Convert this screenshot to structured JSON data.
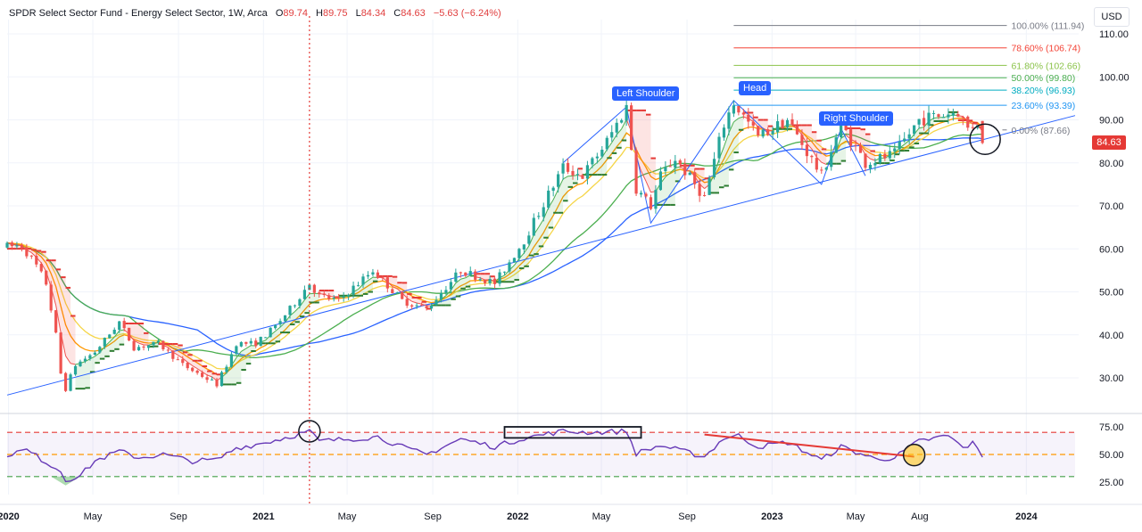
{
  "header": {
    "title": "SPDR Select Sector Fund - Energy Select Sector, 1W, Arca",
    "open_label": "O",
    "open_value": "89.74",
    "high_label": "H",
    "high_value": "89.75",
    "low_label": "L",
    "low_value": "84.34",
    "close_label": "C",
    "close_value": "84.63",
    "change": "−5.63 (−6.24%)"
  },
  "currency_button": "USD",
  "last_price_badge": "84.63",
  "colors": {
    "up": "#26a69a",
    "down": "#ef5350",
    "ma_blue": "#2962ff",
    "ma_green": "#4caf50",
    "ma_yellow": "#f5d547",
    "ma_orange": "#ff9800",
    "rsi_line": "#673ab7",
    "label_bg": "#2962ff"
  },
  "pattern_labels": [
    "Left Shoulder",
    "Head",
    "Right Shoulder"
  ],
  "chart_data": [
    {
      "type": "candlestick",
      "panel": "price",
      "yaxis_ticks": [
        "110.00",
        "100.00",
        "90.00",
        "80.00",
        "70.00",
        "60.00",
        "50.00",
        "40.00",
        "30.00"
      ],
      "ylim": [
        21,
        114
      ],
      "xaxis_ticks": [
        "2020",
        "May",
        "Sep",
        "2021",
        "May",
        "Sep",
        "2022",
        "May",
        "Sep",
        "2023",
        "May",
        "Aug",
        "2024"
      ],
      "price_anchors": [
        [
          "2019-12-30",
          60.5
        ],
        [
          "2020-01-20",
          60.8
        ],
        [
          "2020-02-10",
          56
        ],
        [
          "2020-02-24",
          52
        ],
        [
          "2020-03-09",
          40
        ],
        [
          "2020-03-16",
          31
        ],
        [
          "2020-03-23",
          27.5
        ],
        [
          "2020-04-06",
          33
        ],
        [
          "2020-05-04",
          36
        ],
        [
          "2020-06-08",
          43
        ],
        [
          "2020-06-29",
          37
        ],
        [
          "2020-08-03",
          38
        ],
        [
          "2020-09-07",
          33
        ],
        [
          "2020-10-26",
          28.5
        ],
        [
          "2020-11-09",
          33
        ],
        [
          "2020-11-23",
          38
        ],
        [
          "2020-12-21",
          38
        ],
        [
          "2021-01-18",
          42
        ],
        [
          "2021-02-08",
          46
        ],
        [
          "2021-03-08",
          52
        ],
        [
          "2021-03-22",
          49
        ],
        [
          "2021-04-19",
          48
        ],
        [
          "2021-06-07",
          55
        ],
        [
          "2021-07-19",
          48
        ],
        [
          "2021-08-23",
          46
        ],
        [
          "2021-10-11",
          55
        ],
        [
          "2021-11-29",
          52
        ],
        [
          "2022-01-10",
          62
        ],
        [
          "2022-03-07",
          79
        ],
        [
          "2022-04-04",
          77
        ],
        [
          "2022-05-09",
          85
        ],
        [
          "2022-06-06",
          93
        ],
        [
          "2022-06-20",
          74
        ],
        [
          "2022-07-11",
          70
        ],
        [
          "2022-07-25",
          77
        ],
        [
          "2022-08-15",
          81
        ],
        [
          "2022-09-26",
          72
        ],
        [
          "2022-10-24",
          89
        ],
        [
          "2022-11-07",
          94
        ],
        [
          "2022-12-12",
          86
        ],
        [
          "2023-01-23",
          90
        ],
        [
          "2023-03-13",
          77
        ],
        [
          "2023-04-10",
          89
        ],
        [
          "2023-05-15",
          80
        ],
        [
          "2023-06-26",
          82
        ],
        [
          "2023-07-31",
          90
        ],
        [
          "2023-09-25",
          92
        ],
        [
          "2023-10-09",
          88
        ],
        [
          "2023-10-23",
          89.74
        ],
        [
          "2023-10-30",
          84.63
        ]
      ],
      "last_candle": {
        "open": 89.74,
        "high": 89.75,
        "low": 84.34,
        "close": 84.63
      },
      "overlays": [
        {
          "name": "long-term-trendline",
          "color": "#2962ff",
          "from": [
            "2019-12-30",
            26
          ],
          "to": [
            "2024-03-11",
            91
          ]
        }
      ],
      "annotations": [
        {
          "text": "Left Shoulder",
          "date": "2022-06-06",
          "price": 93
        },
        {
          "text": "Head",
          "date": "2022-11-07",
          "price": 94.5
        },
        {
          "text": "Right Shoulder",
          "date": "2023-03-06",
          "price": 88
        }
      ],
      "fibonacci": {
        "start_date": "2022-11-07",
        "end_date": "2023-12-04",
        "levels": [
          {
            "label": "100.00% (111.94)",
            "price": 111.94,
            "color": "#787b86"
          },
          {
            "label": "78.60% (106.74)",
            "price": 106.74,
            "color": "#f44336"
          },
          {
            "label": "61.80% (102.66)",
            "price": 102.66,
            "color": "#8bc34a"
          },
          {
            "label": "50.00% (99.80)",
            "price": 99.8,
            "color": "#4caf50"
          },
          {
            "label": "38.20% (96.93)",
            "price": 96.93,
            "color": "#00acc1"
          },
          {
            "label": "23.60% (93.39)",
            "price": 93.39,
            "color": "#2196f3"
          },
          {
            "label": "0.00% (87.66)",
            "price": 87.66,
            "color": "#787b86"
          }
        ]
      }
    },
    {
      "type": "line",
      "panel": "rsi",
      "yaxis_ticks": [
        "75.00",
        "50.00",
        "25.00"
      ],
      "ylim": [
        20,
        79
      ],
      "upper_band": 70,
      "middle_band": 50,
      "lower_band": 30,
      "rsi_anchors": [
        [
          "2019-12-30",
          50
        ],
        [
          "2020-01-27",
          54
        ],
        [
          "2020-02-24",
          43
        ],
        [
          "2020-03-16",
          35
        ],
        [
          "2020-03-23",
          27
        ],
        [
          "2020-04-13",
          31
        ],
        [
          "2020-05-04",
          44
        ],
        [
          "2020-06-08",
          53
        ],
        [
          "2020-07-06",
          47
        ],
        [
          "2020-08-10",
          50
        ],
        [
          "2020-09-21",
          44
        ],
        [
          "2020-10-26",
          45
        ],
        [
          "2020-11-23",
          56
        ],
        [
          "2020-12-21",
          59
        ],
        [
          "2021-01-25",
          64
        ],
        [
          "2021-03-08",
          71
        ],
        [
          "2021-03-22",
          62
        ],
        [
          "2021-05-03",
          64
        ],
        [
          "2021-06-14",
          66
        ],
        [
          "2021-07-26",
          55
        ],
        [
          "2021-08-23",
          50
        ],
        [
          "2021-10-11",
          64
        ],
        [
          "2021-11-29",
          57
        ],
        [
          "2022-01-10",
          65
        ],
        [
          "2022-03-07",
          71
        ],
        [
          "2022-04-18",
          70
        ],
        [
          "2022-06-06",
          71
        ],
        [
          "2022-06-20",
          51
        ],
        [
          "2022-07-25",
          58
        ],
        [
          "2022-09-26",
          48
        ],
        [
          "2022-10-24",
          65
        ],
        [
          "2022-11-14",
          67
        ],
        [
          "2022-12-12",
          57
        ],
        [
          "2023-01-23",
          61
        ],
        [
          "2023-03-13",
          45
        ],
        [
          "2023-04-10",
          57
        ],
        [
          "2023-05-29",
          46
        ],
        [
          "2023-06-26",
          47
        ],
        [
          "2023-07-31",
          62
        ],
        [
          "2023-09-11",
          67
        ],
        [
          "2023-10-02",
          56
        ],
        [
          "2023-10-16",
          60
        ],
        [
          "2023-10-30",
          49
        ]
      ],
      "overlays": [
        {
          "name": "rsi-divergence-line",
          "color": "#e53935",
          "from": [
            "2022-09-26",
            68
          ],
          "to": [
            "2023-07-24",
            48
          ]
        }
      ]
    }
  ]
}
